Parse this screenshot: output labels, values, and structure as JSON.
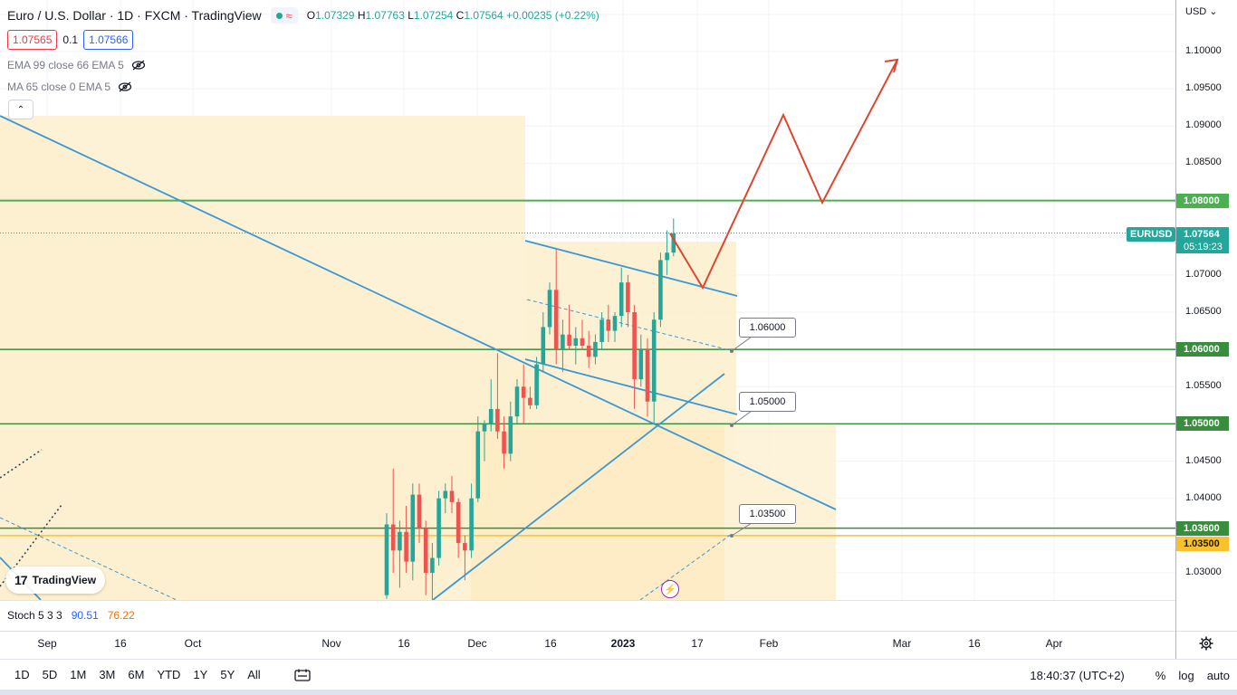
{
  "header": {
    "symbol_title": "Euro / U.S. Dollar · 1D · FXCM · TradingView",
    "wave_icon": "≈",
    "ohlc": {
      "o_key": "O",
      "o": "1.07329",
      "h_key": "H",
      "h": "1.07763",
      "l_key": "L",
      "l": "1.07254",
      "c_key": "C",
      "c": "1.07564",
      "change": "+0.00235 (+0.22%)"
    },
    "bid": "1.07565",
    "spread": "0.1",
    "ask": "1.07566"
  },
  "indicators": [
    {
      "label": "EMA 99 close 66 EMA 5",
      "icon": "eye-off-icon"
    },
    {
      "label": "MA 65 close 0 EMA 5",
      "icon": "eye-off-icon"
    }
  ],
  "collapse_icon": "⌃",
  "logo": {
    "mark": "17",
    "text": "TradingView"
  },
  "stoch": {
    "label": "Stoch 5 3 3",
    "k": "90.51",
    "d": "76.22"
  },
  "price_axis": {
    "currency": "USD",
    "labels": [
      "1.10000",
      "1.09500",
      "1.09000",
      "1.08500",
      "1.07000",
      "1.06500",
      "1.05500",
      "1.04500",
      "1.04000",
      "1.03000"
    ],
    "tags": [
      {
        "value": "1.08000",
        "color": "#4caf50"
      },
      {
        "value": "1.06000",
        "color": "#388e3c"
      },
      {
        "value": "1.05000",
        "color": "#388e3c"
      },
      {
        "value": "1.03600",
        "color": "#388e3c"
      },
      {
        "value": "1.03500",
        "color": "#fbc02d"
      }
    ],
    "last_price": "1.07564",
    "symbol_tag": "EURUSD",
    "countdown": "05:19:23"
  },
  "callouts": [
    "1.06000",
    "1.05000",
    "1.03500"
  ],
  "time_axis": [
    "Sep",
    "16",
    "Oct",
    "Nov",
    "16",
    "Dec",
    "16",
    "2023",
    "17",
    "Feb",
    "Mar",
    "16",
    "Apr"
  ],
  "toolbar": {
    "timeframes": [
      "1D",
      "5D",
      "1M",
      "3M",
      "6M",
      "YTD",
      "1Y",
      "5Y",
      "All"
    ],
    "clock": "18:40:37 (UTC+2)",
    "percent": "%",
    "log": "log",
    "auto": "auto"
  },
  "colors": {
    "up": "#26a69a",
    "down": "#ef5350",
    "trendline": "#3d97d3",
    "support": "#43a047",
    "forecast": "#e0452f",
    "zone": "#fdf0cf"
  },
  "chart_data": {
    "type": "candlestick",
    "candles": [
      {
        "o": 1.027,
        "h": 1.038,
        "l": 1.0265,
        "c": 1.0365
      },
      {
        "o": 1.0365,
        "h": 1.044,
        "l": 1.03,
        "c": 1.033
      },
      {
        "o": 1.033,
        "h": 1.037,
        "l": 1.028,
        "c": 1.0355
      },
      {
        "o": 1.0355,
        "h": 1.039,
        "l": 1.03,
        "c": 1.0315
      },
      {
        "o": 1.0315,
        "h": 1.042,
        "l": 1.029,
        "c": 1.0405
      },
      {
        "o": 1.0405,
        "h": 1.042,
        "l": 1.034,
        "c": 1.036
      },
      {
        "o": 1.036,
        "h": 1.037,
        "l": 1.027,
        "c": 1.03
      },
      {
        "o": 1.03,
        "h": 1.034,
        "l": 1.025,
        "c": 1.032
      },
      {
        "o": 1.032,
        "h": 1.041,
        "l": 1.031,
        "c": 1.04
      },
      {
        "o": 1.04,
        "h": 1.042,
        "l": 1.038,
        "c": 1.041
      },
      {
        "o": 1.041,
        "h": 1.043,
        "l": 1.038,
        "c": 1.0395
      },
      {
        "o": 1.0395,
        "h": 1.04,
        "l": 1.032,
        "c": 1.034
      },
      {
        "o": 1.034,
        "h": 1.035,
        "l": 1.029,
        "c": 1.033
      },
      {
        "o": 1.033,
        "h": 1.042,
        "l": 1.032,
        "c": 1.04
      },
      {
        "o": 1.04,
        "h": 1.051,
        "l": 1.0395,
        "c": 1.049
      },
      {
        "o": 1.049,
        "h": 1.0505,
        "l": 1.045,
        "c": 1.05
      },
      {
        "o": 1.05,
        "h": 1.056,
        "l": 1.049,
        "c": 1.052
      },
      {
        "o": 1.052,
        "h": 1.0595,
        "l": 1.048,
        "c": 1.049
      },
      {
        "o": 1.049,
        "h": 1.051,
        "l": 1.044,
        "c": 1.046
      },
      {
        "o": 1.046,
        "h": 1.053,
        "l": 1.045,
        "c": 1.051
      },
      {
        "o": 1.051,
        "h": 1.056,
        "l": 1.05,
        "c": 1.055
      },
      {
        "o": 1.055,
        "h": 1.058,
        "l": 1.05,
        "c": 1.0535
      },
      {
        "o": 1.0535,
        "h": 1.055,
        "l": 1.052,
        "c": 1.0525
      },
      {
        "o": 1.0525,
        "h": 1.059,
        "l": 1.052,
        "c": 1.058
      },
      {
        "o": 1.058,
        "h": 1.065,
        "l": 1.057,
        "c": 1.063
      },
      {
        "o": 1.063,
        "h": 1.069,
        "l": 1.062,
        "c": 1.068
      },
      {
        "o": 1.068,
        "h": 1.0735,
        "l": 1.058,
        "c": 1.06
      },
      {
        "o": 1.06,
        "h": 1.064,
        "l": 1.057,
        "c": 1.062
      },
      {
        "o": 1.062,
        "h": 1.066,
        "l": 1.06,
        "c": 1.0605
      },
      {
        "o": 1.0605,
        "h": 1.063,
        "l": 1.058,
        "c": 1.0615
      },
      {
        "o": 1.0615,
        "h": 1.064,
        "l": 1.06,
        "c": 1.0605
      },
      {
        "o": 1.0605,
        "h": 1.0625,
        "l": 1.0575,
        "c": 1.059
      },
      {
        "o": 1.059,
        "h": 1.062,
        "l": 1.058,
        "c": 1.061
      },
      {
        "o": 1.061,
        "h": 1.065,
        "l": 1.06,
        "c": 1.064
      },
      {
        "o": 1.064,
        "h": 1.066,
        "l": 1.061,
        "c": 1.0625
      },
      {
        "o": 1.0625,
        "h": 1.065,
        "l": 1.061,
        "c": 1.0645
      },
      {
        "o": 1.0645,
        "h": 1.071,
        "l": 1.063,
        "c": 1.069
      },
      {
        "o": 1.069,
        "h": 1.07,
        "l": 1.063,
        "c": 1.065
      },
      {
        "o": 1.065,
        "h": 1.066,
        "l": 1.052,
        "c": 1.056
      },
      {
        "o": 1.056,
        "h": 1.062,
        "l": 1.055,
        "c": 1.06
      },
      {
        "o": 1.06,
        "h": 1.0615,
        "l": 1.051,
        "c": 1.053
      },
      {
        "o": 1.053,
        "h": 1.065,
        "l": 1.05,
        "c": 1.064
      },
      {
        "o": 1.064,
        "h": 1.073,
        "l": 1.063,
        "c": 1.072
      },
      {
        "o": 1.072,
        "h": 1.076,
        "l": 1.07,
        "c": 1.073
      },
      {
        "o": 1.073,
        "h": 1.0776,
        "l": 1.0725,
        "c": 1.0756
      }
    ],
    "horizontal_levels": [
      1.08,
      1.06,
      1.05,
      1.036,
      1.035
    ],
    "forecast_path": [
      {
        "date": "2023-01-11",
        "price": 1.0756
      },
      {
        "date": "2023-01-16",
        "price": 1.0685
      },
      {
        "date": "2023-01-29",
        "price": 1.0915
      },
      {
        "date": "2023-02-09",
        "price": 1.0798
      },
      {
        "date": "2023-03-05",
        "price": 1.099
      }
    ],
    "y_range": [
      1.026,
      1.105
    ],
    "scale": "linear",
    "grid": true
  }
}
